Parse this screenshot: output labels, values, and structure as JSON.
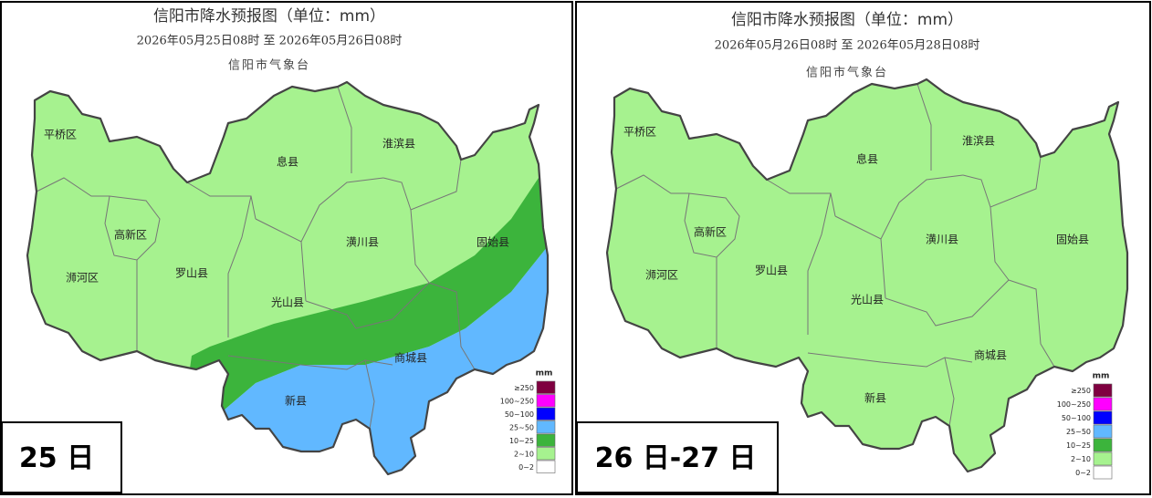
{
  "panels": [
    {
      "title": "信阳市降水预报图（单位：mm）",
      "subtitle": "2026年05月25日08时  至  2026年05月26日08时",
      "agency": "信阳市气象台",
      "districts": [
        "平桥区",
        "高新区",
        "浉河区",
        "罗山县",
        "光山县",
        "新县",
        "息县",
        "淮滨县",
        "潢川县",
        "商城县",
        "固始县"
      ],
      "legend": {
        "unit": "mm",
        "items": [
          {
            "label": "≥250",
            "color": "#7f0040"
          },
          {
            "label": "100~250",
            "color": "#ff00ff"
          },
          {
            "label": "50~100",
            "color": "#0000ff"
          },
          {
            "label": "25~50",
            "color": "#61b8ff"
          },
          {
            "label": "10~25",
            "color": "#3cb43c"
          },
          {
            "label": "2~10",
            "color": "#a6f28f"
          },
          {
            "label": "0~2",
            "color": "#ffffff"
          }
        ]
      },
      "day": "25 日"
    },
    {
      "title": "信阳市降水预报图（单位：mm）",
      "subtitle": "2026年05月26日08时  至  2026年05月28日08时",
      "agency": "信阳市气象台",
      "districts": [
        "平桥区",
        "高新区",
        "浉河区",
        "罗山县",
        "光山县",
        "新县",
        "息县",
        "淮滨县",
        "潢川县",
        "商城县",
        "固始县"
      ],
      "legend": {
        "unit": "mm",
        "items": [
          {
            "label": "≥250",
            "color": "#7f0040"
          },
          {
            "label": "100~250",
            "color": "#ff00ff"
          },
          {
            "label": "50~100",
            "color": "#0000ff"
          },
          {
            "label": "25~50",
            "color": "#61b8ff"
          },
          {
            "label": "10~25",
            "color": "#3cb43c"
          },
          {
            "label": "2~10",
            "color": "#a6f28f"
          },
          {
            "label": "0~2",
            "color": "#ffffff"
          }
        ]
      },
      "day": "26 日-27 日"
    }
  ]
}
